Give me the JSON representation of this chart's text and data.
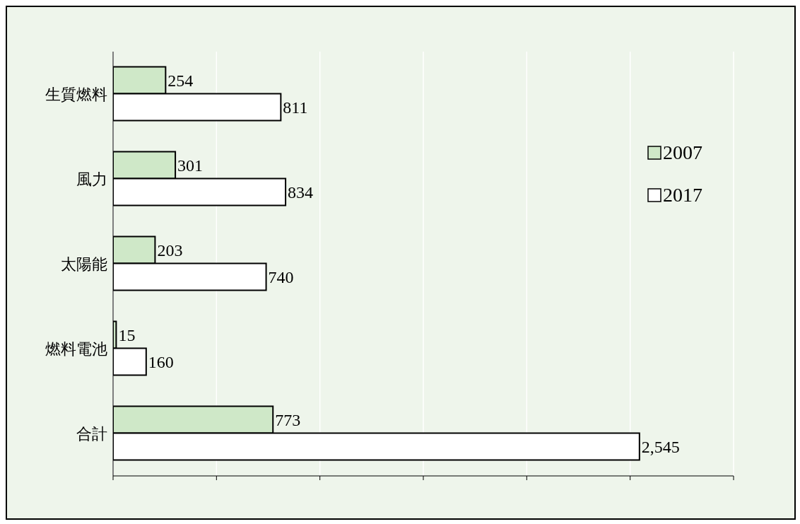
{
  "chart_data": {
    "type": "bar",
    "orientation": "horizontal",
    "categories": [
      "生質燃料",
      "風力",
      "太陽能",
      "燃料電池",
      "合計"
    ],
    "series": [
      {
        "name": "2007",
        "color": "#cfe8c8",
        "values": [
          254,
          301,
          203,
          15,
          773
        ],
        "value_labels": [
          "254",
          "301",
          "203",
          "15",
          "773"
        ]
      },
      {
        "name": "2017",
        "color": "#ffffff",
        "values": [
          811,
          834,
          740,
          160,
          2545
        ],
        "value_labels": [
          "811",
          "834",
          "740",
          "160",
          "2,545"
        ]
      }
    ],
    "xlim": [
      0,
      3000
    ],
    "xticks": [
      {
        "value": 0,
        "label": null
      },
      {
        "value": 500,
        "label": null
      },
      {
        "value": 1000,
        "label": null
      },
      {
        "value": 1500,
        "label": null
      },
      {
        "value": 2000,
        "label": null
      },
      {
        "value": 2500,
        "label": null
      },
      {
        "value": 3000,
        "label": null
      }
    ],
    "grid": "x",
    "legend": "right"
  }
}
